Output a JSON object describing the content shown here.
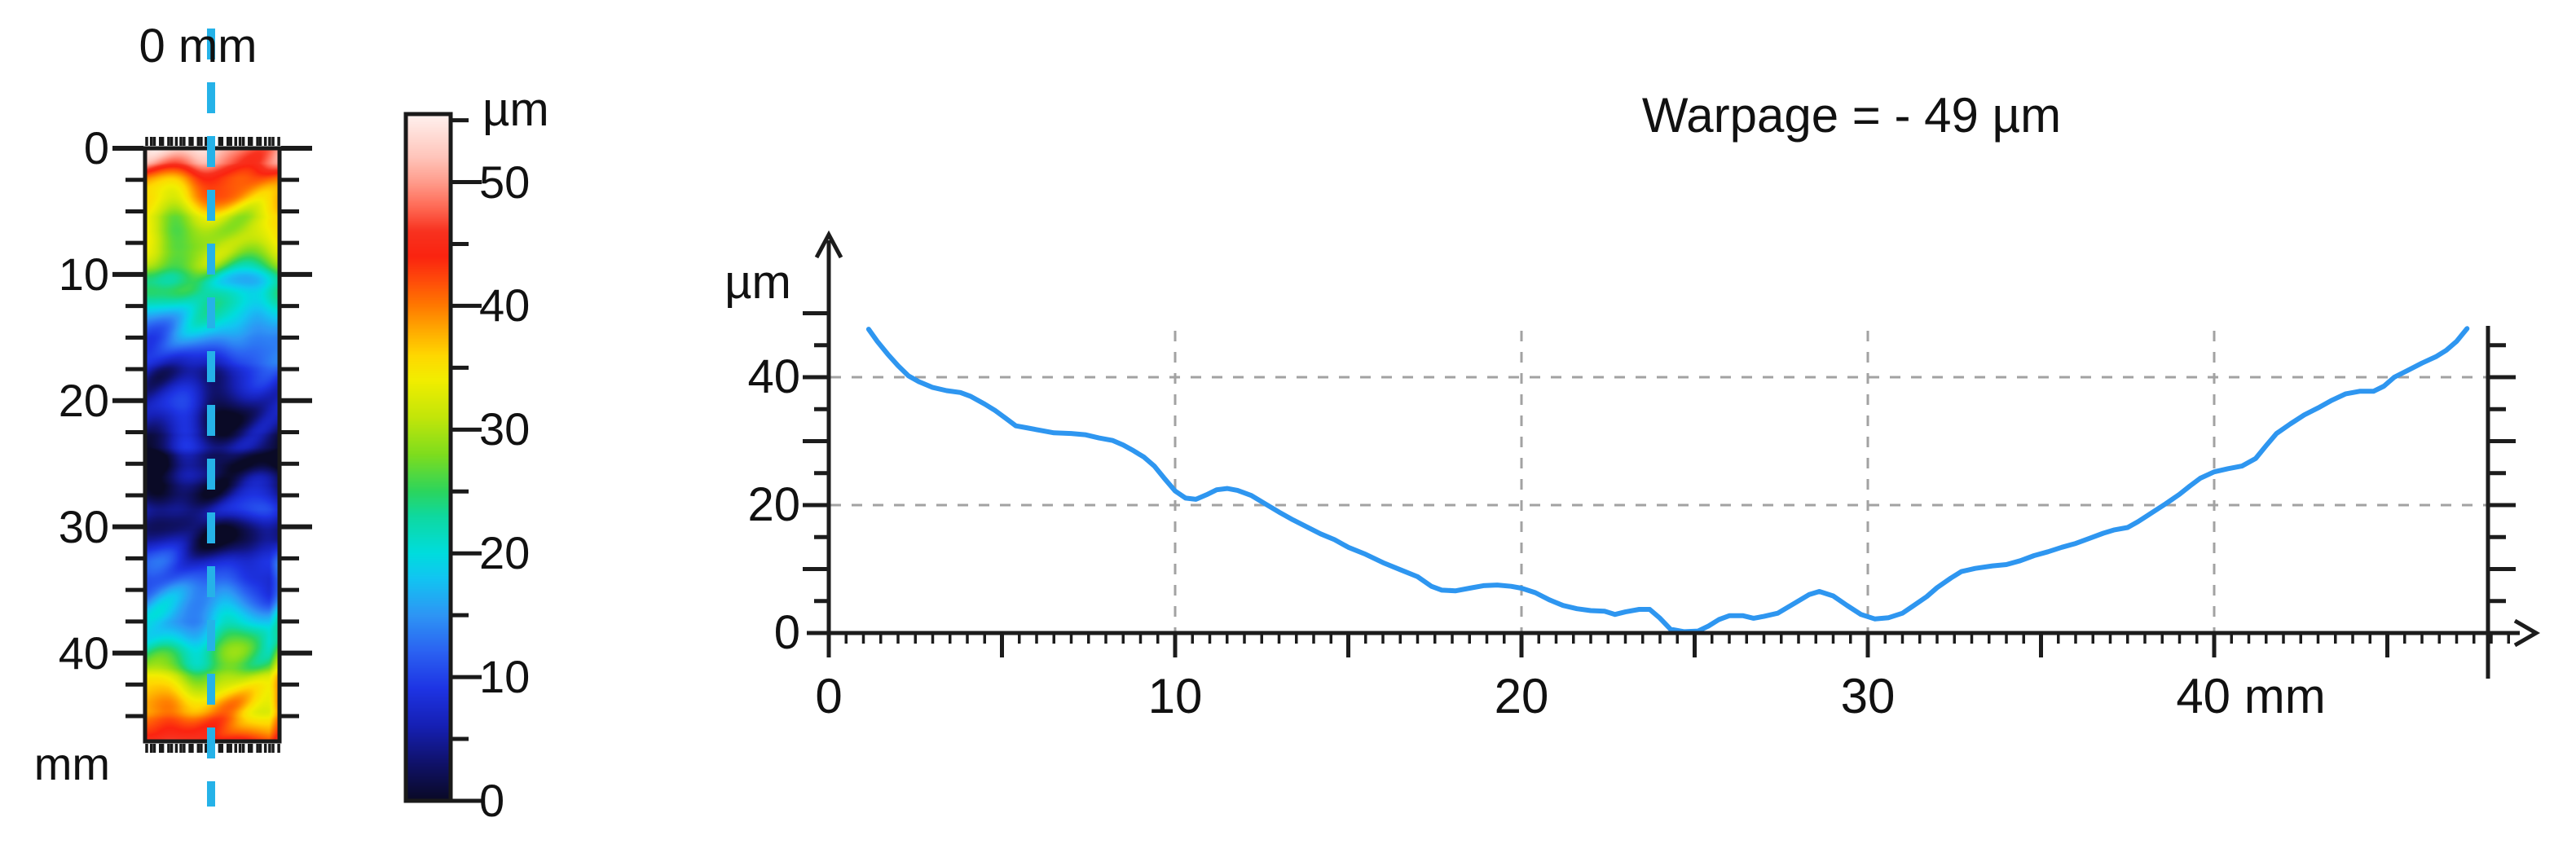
{
  "title": {
    "text": "Warpage = - 49 µm"
  },
  "surface_map": {
    "top_axis_label": "0 mm",
    "bottom_unit_label": "mm",
    "y_ticks": [
      0,
      10,
      20,
      30,
      40
    ],
    "y_tick_labels": [
      "0",
      "10",
      "20",
      "30",
      "40"
    ],
    "depth_range_mm": [
      0,
      47
    ],
    "crosshair_color": "#25b2e8",
    "frame_color": "#1a1a1a"
  },
  "colorbar": {
    "unit_label": "µm",
    "ticks": [
      0,
      10,
      20,
      30,
      40,
      50
    ],
    "tick_labels": [
      "0",
      "10",
      "20",
      "30",
      "40",
      "50"
    ],
    "range": [
      0,
      55.5
    ],
    "gradient_stops": [
      {
        "v": 0,
        "c": "#0a0a26"
      },
      {
        "v": 3,
        "c": "#10126a"
      },
      {
        "v": 6,
        "c": "#1620b4"
      },
      {
        "v": 9,
        "c": "#1e34e4"
      },
      {
        "v": 12,
        "c": "#2b62f2"
      },
      {
        "v": 15,
        "c": "#2e96f5"
      },
      {
        "v": 18,
        "c": "#12c6f2"
      },
      {
        "v": 20,
        "c": "#00ddde"
      },
      {
        "v": 23,
        "c": "#0fd9a0"
      },
      {
        "v": 25,
        "c": "#2cd55e"
      },
      {
        "v": 28,
        "c": "#7fdd1e"
      },
      {
        "v": 31,
        "c": "#c3e60a"
      },
      {
        "v": 34,
        "c": "#f2ee00"
      },
      {
        "v": 36,
        "c": "#ffd800"
      },
      {
        "v": 38,
        "c": "#ffab00"
      },
      {
        "v": 40,
        "c": "#ff7a00"
      },
      {
        "v": 42,
        "c": "#ff4d0a"
      },
      {
        "v": 44,
        "c": "#fb2410"
      },
      {
        "v": 46,
        "c": "#f8321f"
      },
      {
        "v": 48,
        "c": "#ff6a55"
      },
      {
        "v": 50,
        "c": "#ff9c8c"
      },
      {
        "v": 52,
        "c": "#ffc5ba"
      },
      {
        "v": 55.5,
        "c": "#fff2ef"
      }
    ]
  },
  "chart_data": {
    "type": "line",
    "title": "Warpage = - 49 µm",
    "xlabel": "mm",
    "ylabel": "µm",
    "xlim": [
      0,
      48.8
    ],
    "ylim": [
      0,
      59
    ],
    "x_ticks": [
      0,
      10,
      20,
      30,
      40
    ],
    "x_tick_labels": [
      "0",
      "10",
      "20",
      "30",
      "40 mm"
    ],
    "y_ticks": [
      0,
      20,
      40
    ],
    "y_tick_labels": [
      "0",
      "20",
      "40"
    ],
    "grid": "dashed",
    "grid_x": [
      10,
      20,
      30,
      40
    ],
    "grid_y": [
      20,
      40
    ],
    "legend": "none",
    "line_color": "#2e96f0",
    "grid_color": "#a2a2a2",
    "axis_color": "#1c1c1c",
    "points": [
      [
        1.15,
        47.5
      ],
      [
        1.4,
        45.6
      ],
      [
        1.7,
        43.6
      ],
      [
        2.0,
        41.8
      ],
      [
        2.3,
        40.2
      ],
      [
        2.6,
        39.3
      ],
      [
        3.0,
        38.4
      ],
      [
        3.4,
        37.9
      ],
      [
        3.8,
        37.6
      ],
      [
        4.1,
        37.0
      ],
      [
        4.5,
        35.8
      ],
      [
        4.8,
        34.8
      ],
      [
        5.1,
        33.6
      ],
      [
        5.4,
        32.4
      ],
      [
        5.7,
        32.1
      ],
      [
        6.1,
        31.7
      ],
      [
        6.5,
        31.3
      ],
      [
        7.0,
        31.2
      ],
      [
        7.4,
        31.0
      ],
      [
        7.8,
        30.5
      ],
      [
        8.2,
        30.1
      ],
      [
        8.5,
        29.4
      ],
      [
        8.8,
        28.5
      ],
      [
        9.1,
        27.5
      ],
      [
        9.4,
        26.1
      ],
      [
        9.7,
        24.1
      ],
      [
        10.0,
        22.2
      ],
      [
        10.3,
        21.1
      ],
      [
        10.6,
        20.9
      ],
      [
        10.9,
        21.6
      ],
      [
        11.2,
        22.4
      ],
      [
        11.5,
        22.6
      ],
      [
        11.8,
        22.3
      ],
      [
        12.2,
        21.5
      ],
      [
        12.6,
        20.2
      ],
      [
        13.0,
        18.9
      ],
      [
        13.4,
        17.7
      ],
      [
        13.8,
        16.6
      ],
      [
        14.2,
        15.5
      ],
      [
        14.6,
        14.6
      ],
      [
        15.0,
        13.4
      ],
      [
        15.5,
        12.3
      ],
      [
        16.0,
        11.0
      ],
      [
        16.5,
        9.9
      ],
      [
        17.0,
        8.8
      ],
      [
        17.4,
        7.3
      ],
      [
        17.7,
        6.7
      ],
      [
        18.1,
        6.6
      ],
      [
        18.5,
        7.0
      ],
      [
        18.9,
        7.4
      ],
      [
        19.3,
        7.5
      ],
      [
        19.7,
        7.3
      ],
      [
        20.0,
        7.0
      ],
      [
        20.4,
        6.3
      ],
      [
        20.8,
        5.2
      ],
      [
        21.2,
        4.3
      ],
      [
        21.6,
        3.8
      ],
      [
        22.0,
        3.5
      ],
      [
        22.4,
        3.4
      ],
      [
        22.7,
        2.9
      ],
      [
        23.0,
        3.3
      ],
      [
        23.4,
        3.7
      ],
      [
        23.7,
        3.7
      ],
      [
        24.0,
        2.3
      ],
      [
        24.3,
        0.6
      ],
      [
        24.7,
        0.2
      ],
      [
        25.1,
        0.3
      ],
      [
        25.4,
        1.1
      ],
      [
        25.7,
        2.1
      ],
      [
        26.0,
        2.7
      ],
      [
        26.4,
        2.7
      ],
      [
        26.7,
        2.3
      ],
      [
        27.0,
        2.6
      ],
      [
        27.4,
        3.1
      ],
      [
        27.9,
        4.7
      ],
      [
        28.3,
        6.0
      ],
      [
        28.6,
        6.5
      ],
      [
        29.0,
        5.8
      ],
      [
        29.4,
        4.3
      ],
      [
        29.8,
        2.9
      ],
      [
        30.2,
        2.2
      ],
      [
        30.6,
        2.4
      ],
      [
        31.0,
        3.1
      ],
      [
        31.3,
        4.2
      ],
      [
        31.7,
        5.7
      ],
      [
        32.0,
        7.1
      ],
      [
        32.4,
        8.6
      ],
      [
        32.7,
        9.6
      ],
      [
        33.1,
        10.1
      ],
      [
        33.6,
        10.5
      ],
      [
        34.0,
        10.7
      ],
      [
        34.4,
        11.3
      ],
      [
        34.8,
        12.1
      ],
      [
        35.2,
        12.7
      ],
      [
        35.6,
        13.4
      ],
      [
        36.0,
        14.0
      ],
      [
        36.4,
        14.8
      ],
      [
        36.8,
        15.6
      ],
      [
        37.1,
        16.1
      ],
      [
        37.5,
        16.5
      ],
      [
        37.8,
        17.4
      ],
      [
        38.2,
        18.8
      ],
      [
        38.6,
        20.2
      ],
      [
        39.0,
        21.7
      ],
      [
        39.3,
        23.0
      ],
      [
        39.6,
        24.2
      ],
      [
        40.0,
        25.2
      ],
      [
        40.4,
        25.7
      ],
      [
        40.8,
        26.1
      ],
      [
        41.2,
        27.3
      ],
      [
        41.5,
        29.3
      ],
      [
        41.8,
        31.2
      ],
      [
        42.2,
        32.7
      ],
      [
        42.6,
        34.1
      ],
      [
        43.0,
        35.2
      ],
      [
        43.4,
        36.4
      ],
      [
        43.8,
        37.4
      ],
      [
        44.2,
        37.8
      ],
      [
        44.6,
        37.8
      ],
      [
        44.9,
        38.6
      ],
      [
        45.2,
        40.0
      ],
      [
        45.6,
        41.1
      ],
      [
        46.0,
        42.2
      ],
      [
        46.4,
        43.2
      ],
      [
        46.7,
        44.2
      ],
      [
        47.0,
        45.6
      ],
      [
        47.3,
        47.6
      ]
    ]
  }
}
